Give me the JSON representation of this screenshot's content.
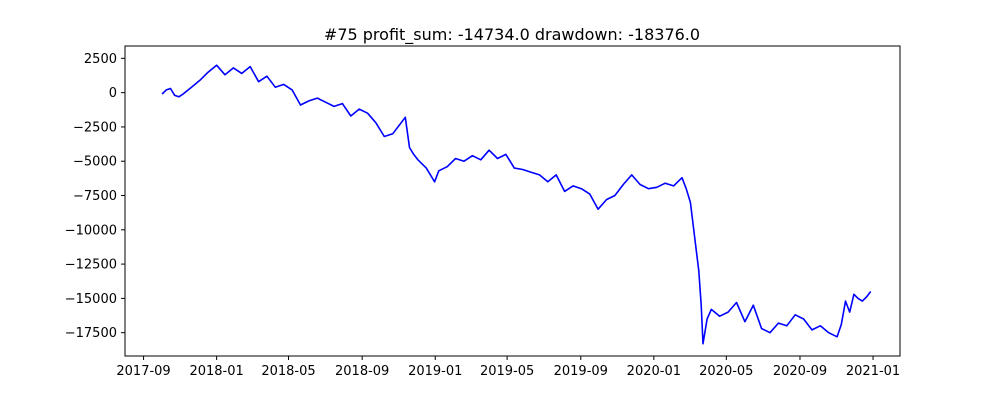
{
  "chart_data": {
    "type": "line",
    "title": "#75   profit_sum: -14734.0 drawdown: -18376.0",
    "xlabel": "",
    "ylabel": "",
    "grid": false,
    "line_color": "#0000ff",
    "x_ticks": [
      "2017-09",
      "2018-01",
      "2018-05",
      "2018-09",
      "2019-01",
      "2019-05",
      "2019-09",
      "2020-01",
      "2020-05",
      "2020-09",
      "2021-01"
    ],
    "y_ticks": [
      2500,
      0,
      -2500,
      -5000,
      -7500,
      -10000,
      -12500,
      -15000,
      -17500
    ],
    "y_tick_labels": [
      "2500",
      "0",
      "−2500",
      "−5000",
      "−7500",
      "−10000",
      "−12500",
      "−15000",
      "−17500"
    ],
    "xlim": [
      "2017-08-01",
      "2021-02-15"
    ],
    "ylim": [
      -19200,
      3400
    ],
    "series": [
      {
        "x": [
          "2017-10-02",
          "2017-10-09",
          "2017-10-16",
          "2017-10-23",
          "2017-10-30",
          "2017-11-06",
          "2017-11-20",
          "2017-12-04",
          "2017-12-18",
          "2018-01-01",
          "2018-01-15",
          "2018-01-29",
          "2018-02-12",
          "2018-02-26",
          "2018-03-12",
          "2018-03-26",
          "2018-04-09",
          "2018-04-23",
          "2018-05-07",
          "2018-05-21",
          "2018-06-04",
          "2018-06-18",
          "2018-07-02",
          "2018-07-16",
          "2018-07-30",
          "2018-08-13",
          "2018-08-27",
          "2018-09-10",
          "2018-09-24",
          "2018-10-08",
          "2018-10-22",
          "2018-11-05",
          "2018-11-12",
          "2018-11-19",
          "2018-11-26",
          "2018-12-03",
          "2018-12-17",
          "2018-12-31",
          "2019-01-07",
          "2019-01-21",
          "2019-02-04",
          "2019-02-18",
          "2019-03-04",
          "2019-03-18",
          "2019-04-01",
          "2019-04-15",
          "2019-04-29",
          "2019-05-13",
          "2019-05-27",
          "2019-06-10",
          "2019-06-24",
          "2019-07-08",
          "2019-07-22",
          "2019-08-05",
          "2019-08-19",
          "2019-09-02",
          "2019-09-16",
          "2019-09-30",
          "2019-10-14",
          "2019-10-28",
          "2019-11-11",
          "2019-11-25",
          "2019-12-09",
          "2019-12-23",
          "2020-01-06",
          "2020-01-20",
          "2020-02-03",
          "2020-02-17",
          "2020-02-24",
          "2020-03-02",
          "2020-03-09",
          "2020-03-16",
          "2020-03-20",
          "2020-03-23",
          "2020-03-30",
          "2020-04-06",
          "2020-04-20",
          "2020-05-04",
          "2020-05-18",
          "2020-06-01",
          "2020-06-15",
          "2020-06-29",
          "2020-07-13",
          "2020-07-27",
          "2020-08-10",
          "2020-08-24",
          "2020-09-07",
          "2020-09-21",
          "2020-10-05",
          "2020-10-19",
          "2020-11-02",
          "2020-11-09",
          "2020-11-16",
          "2020-11-23",
          "2020-11-30",
          "2020-12-07",
          "2020-12-14",
          "2020-12-21",
          "2020-12-28"
        ],
        "y": [
          -100,
          200,
          300,
          -200,
          -300,
          -100,
          400,
          900,
          1500,
          2000,
          1300,
          1800,
          1400,
          1900,
          800,
          1200,
          400,
          600,
          200,
          -900,
          -600,
          -400,
          -700,
          -1000,
          -800,
          -1700,
          -1200,
          -1500,
          -2200,
          -3200,
          -3000,
          -2200,
          -1800,
          -4000,
          -4500,
          -4900,
          -5500,
          -6500,
          -5700,
          -5400,
          -4800,
          -5000,
          -4600,
          -4900,
          -4200,
          -4800,
          -4500,
          -5500,
          -5600,
          -5800,
          -6000,
          -6500,
          -6000,
          -7200,
          -6800,
          -7000,
          -7400,
          -8500,
          -7800,
          -7500,
          -6700,
          -6000,
          -6700,
          -7000,
          -6900,
          -6600,
          -6800,
          -6200,
          -7000,
          -8000,
          -10500,
          -13000,
          -15500,
          -18300,
          -16500,
          -15800,
          -16300,
          -16000,
          -15300,
          -16700,
          -15500,
          -17200,
          -17500,
          -16800,
          -17000,
          -16200,
          -16500,
          -17300,
          -17000,
          -17500,
          -17800,
          -16900,
          -15200,
          -16000,
          -14700,
          -15000,
          -15200,
          -14900,
          -14500
        ]
      }
    ]
  }
}
